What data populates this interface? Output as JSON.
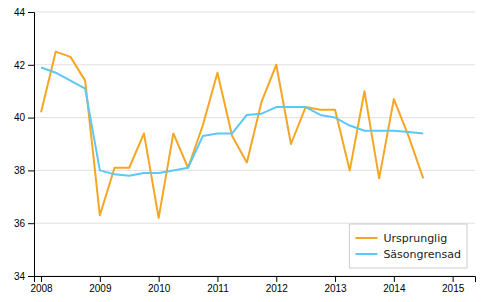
{
  "chart_data": {
    "type": "line",
    "x": [
      2008,
      2008.25,
      2008.5,
      2008.75,
      2009,
      2009.25,
      2009.5,
      2009.75,
      2010,
      2010.25,
      2010.5,
      2010.75,
      2011,
      2011.25,
      2011.5,
      2011.75,
      2012,
      2012.25,
      2012.5,
      2012.75,
      2013,
      2013.25,
      2013.5,
      2013.75,
      2014,
      2014.25,
      2014.5
    ],
    "series": [
      {
        "name": "Ursprunglig",
        "color": "#f5a623",
        "values": [
          40.2,
          42.5,
          42.3,
          41.4,
          36.3,
          38.1,
          38.1,
          39.4,
          36.2,
          39.4,
          38.1,
          39.7,
          41.7,
          39.3,
          38.3,
          40.6,
          42.0,
          39.0,
          40.4,
          40.3,
          40.3,
          38.0,
          41.0,
          37.7,
          40.7,
          39.3,
          37.7
        ]
      },
      {
        "name": "Säsongrensad",
        "color": "#5bc8f5",
        "values": [
          41.9,
          41.7,
          41.4,
          41.1,
          38.0,
          37.85,
          37.8,
          37.9,
          37.9,
          38.0,
          38.1,
          39.3,
          39.4,
          39.4,
          40.1,
          40.15,
          40.4,
          40.4,
          40.4,
          40.1,
          40.0,
          39.7,
          39.5,
          39.5,
          39.5,
          39.45,
          39.4
        ]
      }
    ],
    "xlim": [
      2007.88,
      2015.38
    ],
    "ylim": [
      34,
      44
    ],
    "xticks": [
      2008,
      2009,
      2010,
      2011,
      2012,
      2013,
      2014,
      2015
    ],
    "yticks": [
      34,
      36,
      38,
      40,
      42,
      44
    ],
    "grid": true,
    "legend": "lower right"
  }
}
